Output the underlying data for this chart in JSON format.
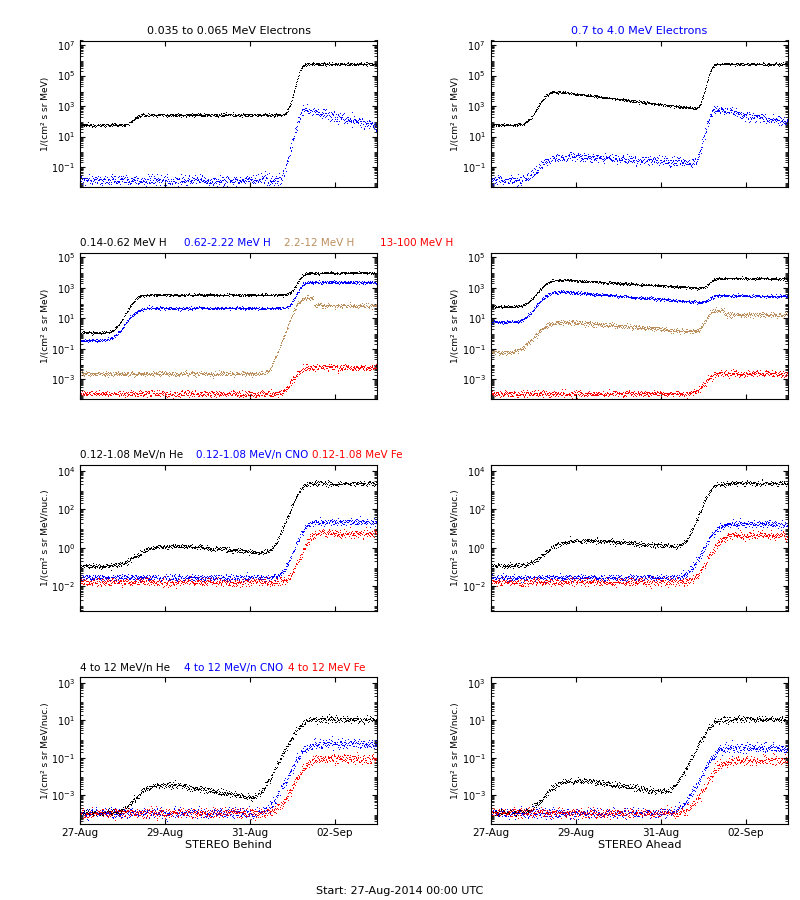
{
  "title_bottom_center": "Start: 27-Aug-2014 00:00 UTC",
  "xlabel_left": "STEREO Behind",
  "xlabel_right": "STEREO Ahead",
  "xtick_labels": [
    "27-Aug",
    "29-Aug",
    "31-Aug",
    "02-Sep"
  ],
  "background_color": "#ffffff",
  "panel_titles_row0": [
    "0.035 to 0.065 MeV Electrons",
    "0.7 to 4.0 MeV Electrons"
  ],
  "panel_titles_row0_colors": [
    "black",
    "blue"
  ],
  "panel_titles_row1": [
    "0.14-0.62 MeV H",
    "0.62-2.22 MeV H",
    "2.2-12 MeV H",
    "13-100 MeV H"
  ],
  "panel_titles_row1_colors": [
    "black",
    "blue",
    "#bc8f5f",
    "red"
  ],
  "panel_titles_row2": [
    "0.12-1.08 MeV/n He",
    "0.12-1.08 MeV/n CNO",
    "0.12-1.08 MeV Fe"
  ],
  "panel_titles_row2_colors": [
    "black",
    "blue",
    "red"
  ],
  "panel_titles_row3": [
    "4 to 12 MeV/n He",
    "4 to 12 MeV/n CNO",
    "4 to 12 MeV Fe"
  ],
  "panel_titles_row3_colors": [
    "black",
    "blue",
    "red"
  ],
  "ylabels_electrons": "1/(cm² s sr MeV)",
  "ylabels_protons": "1/(cm² s sr MeV)",
  "ylabels_heavy1": "1/(cm² s sr MeV/nuc.)",
  "ylabels_heavy2": "1/(cm² s sr MeV/nuc.)",
  "ylim_row0": [
    0.005,
    20000000.0
  ],
  "ylim_row1": [
    5e-05,
    200000.0
  ],
  "ylim_row2": [
    0.0005,
    20000.0
  ],
  "ylim_row3": [
    3e-05,
    2000.0
  ],
  "time_days": 7.0,
  "event_day": 5.2,
  "pre_event_day": 1.5,
  "n_points": 800
}
